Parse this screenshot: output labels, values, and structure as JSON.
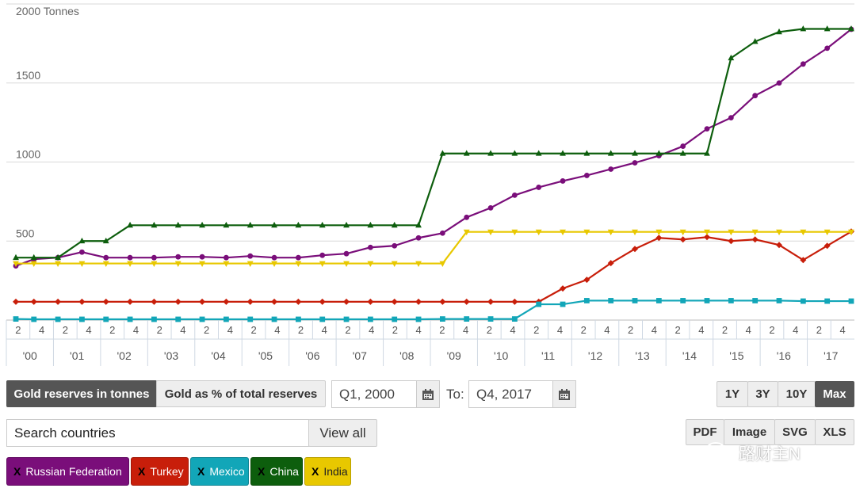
{
  "chart_data": {
    "type": "line",
    "y_top_label": "2000 Tonnes",
    "yticks": [
      {
        "value": 500,
        "label": "500"
      },
      {
        "value": 1000,
        "label": "1000"
      },
      {
        "value": 1500,
        "label": "1500"
      }
    ],
    "ylim": [
      0,
      2000
    ],
    "grid": true,
    "quarter_ticks": [
      "2",
      "4",
      "2",
      "4",
      "2",
      "4",
      "2",
      "4",
      "2",
      "4",
      "2",
      "4",
      "2",
      "4",
      "2",
      "4",
      "2",
      "4",
      "2",
      "4",
      "2",
      "4",
      "2",
      "4",
      "2",
      "4",
      "2",
      "4",
      "2",
      "4",
      "2",
      "4",
      "2",
      "4",
      "2",
      "4"
    ],
    "year_labels": [
      "'00",
      "'01",
      "'02",
      "'03",
      "'04",
      "'05",
      "'06",
      "'07",
      "'08",
      "'09",
      "'10",
      "'11",
      "'12",
      "'13",
      "'14",
      "'15",
      "'16",
      "'17"
    ],
    "quarters": 72,
    "series": [
      {
        "name": "Russian Federation",
        "color": "#7a0e7a",
        "marker": "circle",
        "q": [
          1,
          4,
          8,
          12,
          16,
          20,
          24,
          28,
          32,
          36,
          40,
          44,
          48,
          52,
          56,
          60,
          64,
          68,
          72,
          76,
          80,
          84,
          88,
          92,
          96,
          100,
          104,
          108,
          112,
          116,
          120,
          124,
          128,
          132,
          136,
          140
        ],
        "values": [
          343,
          385,
          395,
          430,
          395,
          395,
          395,
          400,
          400,
          395,
          405,
          395,
          395,
          410,
          420,
          460,
          470,
          520,
          550,
          650,
          710,
          790,
          840,
          880,
          915,
          955,
          995,
          1040,
          1100,
          1210,
          1280,
          1420,
          1500,
          1620,
          1720,
          1840
        ]
      },
      {
        "name": "Turkey",
        "color": "#c81e0a",
        "marker": "diamond",
        "q": [
          1,
          4,
          8,
          12,
          16,
          20,
          24,
          28,
          32,
          36,
          40,
          44,
          48,
          52,
          56,
          60,
          64,
          68,
          72,
          76,
          80,
          84,
          88,
          92,
          96,
          100,
          104,
          108,
          112,
          116,
          120,
          124,
          128,
          132,
          136,
          140
        ],
        "values": [
          116,
          116,
          116,
          116,
          116,
          116,
          116,
          116,
          116,
          116,
          116,
          116,
          116,
          116,
          116,
          116,
          116,
          116,
          116,
          116,
          116,
          116,
          116,
          200,
          255,
          360,
          450,
          520,
          510,
          525,
          500,
          510,
          475,
          380,
          470,
          560
        ]
      },
      {
        "name": "Mexico",
        "color": "#12a6b8",
        "marker": "square",
        "q": [
          1,
          4,
          8,
          12,
          16,
          20,
          24,
          28,
          32,
          36,
          40,
          44,
          48,
          52,
          56,
          60,
          64,
          68,
          72,
          76,
          80,
          84,
          88,
          92,
          96,
          100,
          104,
          108,
          112,
          116,
          120,
          124,
          128,
          132,
          136,
          140
        ],
        "values": [
          7,
          5,
          5,
          5,
          5,
          5,
          5,
          5,
          5,
          5,
          5,
          5,
          5,
          5,
          5,
          5,
          5,
          5,
          7,
          7,
          7,
          7,
          100,
          100,
          123,
          123,
          123,
          123,
          123,
          123,
          123,
          123,
          123,
          120,
          120,
          120
        ]
      },
      {
        "name": "China",
        "color": "#0d5e0d",
        "marker": "triangle",
        "q": [
          1,
          4,
          8,
          12,
          16,
          20,
          24,
          28,
          32,
          36,
          40,
          44,
          48,
          52,
          56,
          60,
          64,
          68,
          72,
          76,
          80,
          84,
          88,
          92,
          96,
          100,
          104,
          108,
          112,
          116,
          120,
          124,
          128,
          132,
          136,
          140
        ],
        "values": [
          395,
          395,
          395,
          500,
          500,
          600,
          600,
          600,
          600,
          600,
          600,
          600,
          600,
          600,
          600,
          600,
          600,
          600,
          1054,
          1054,
          1054,
          1054,
          1054,
          1054,
          1054,
          1054,
          1054,
          1054,
          1054,
          1054,
          1658,
          1762,
          1823,
          1842,
          1842,
          1842
        ]
      },
      {
        "name": "India",
        "color": "#e8c800",
        "marker": "triangle-down",
        "q": [
          1,
          4,
          8,
          12,
          16,
          20,
          24,
          28,
          32,
          36,
          40,
          44,
          48,
          52,
          56,
          60,
          64,
          68,
          72,
          76,
          80,
          84,
          88,
          92,
          96,
          100,
          104,
          108,
          112,
          116,
          120,
          124,
          128,
          132,
          136,
          140
        ],
        "values": [
          358,
          358,
          358,
          358,
          358,
          358,
          358,
          358,
          358,
          358,
          358,
          358,
          358,
          358,
          358,
          358,
          358,
          358,
          358,
          558,
          558,
          558,
          558,
          558,
          558,
          558,
          558,
          558,
          558,
          558,
          558,
          558,
          558,
          558,
          558,
          558
        ]
      }
    ]
  },
  "controls": {
    "tab_tonnes": "Gold reserves in tonnes",
    "tab_percent": "Gold as % of total reserves",
    "from_value": "Q1, 2000",
    "to_label": "To:",
    "to_value": "Q4, 2017",
    "range_1y": "1Y",
    "range_3y": "3Y",
    "range_10y": "10Y",
    "range_max": "Max",
    "search_placeholder": "Search countries",
    "view_all": "View all",
    "export_pdf": "PDF",
    "export_image": "Image",
    "export_svg": "SVG",
    "export_xls": "XLS",
    "chip_x": "X",
    "watermark": "路财主N"
  }
}
